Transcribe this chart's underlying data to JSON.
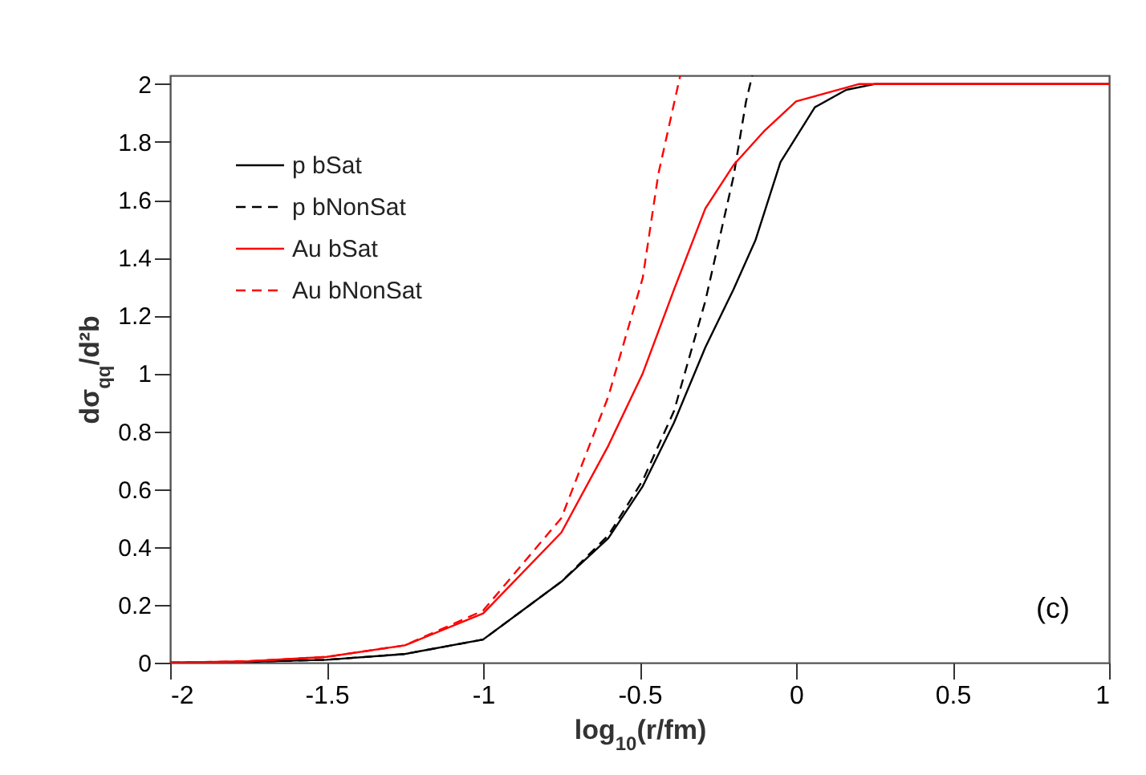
{
  "chart_data": {
    "type": "line",
    "xlabel": "log$_{10}$(r/fm)",
    "ylabel": "dσ$_{qq}$/d²b",
    "xlim": [
      -2,
      1
    ],
    "ylim": [
      0,
      2.03
    ],
    "xticks": [
      -2,
      -1.5,
      -1,
      -0.5,
      0,
      0.5,
      1
    ],
    "yticks": [
      0,
      0.2,
      0.4,
      0.6,
      0.8,
      1,
      1.2,
      1.4,
      1.6,
      1.8,
      2
    ],
    "grid": false,
    "legend": "top left",
    "marker": "none",
    "annotations": [
      "(c)"
    ],
    "series": [
      {
        "name": "p bSat",
        "color": "#000000",
        "line_style": "solid",
        "x": [
          -2,
          -1.75,
          -1.5,
          -1.25,
          -1,
          -0.75,
          -0.6,
          -0.49,
          -0.39,
          -0.29,
          -0.2,
          -0.13,
          -0.05,
          0.06,
          0.16,
          0.25,
          1
        ],
        "values": [
          0,
          0.003,
          0.01,
          0.03,
          0.08,
          0.28,
          0.43,
          0.61,
          0.83,
          1.09,
          1.29,
          1.46,
          1.73,
          1.92,
          1.98,
          2,
          2
        ]
      },
      {
        "name": "p bNonSat",
        "color": "#000000",
        "line_style": "dashed",
        "x": [
          -2,
          -1.75,
          -1.5,
          -1.25,
          -1,
          -0.75,
          -0.6,
          -0.49,
          -0.39,
          -0.29,
          -0.2,
          -0.16,
          -0.14
        ],
        "values": [
          0,
          0.003,
          0.01,
          0.03,
          0.08,
          0.28,
          0.44,
          0.63,
          0.87,
          1.25,
          1.68,
          1.94,
          2.03
        ]
      },
      {
        "name": "Au bSat",
        "color": "#ff0000",
        "line_style": "solid",
        "x": [
          -2,
          -1.75,
          -1.5,
          -1.25,
          -1,
          -0.75,
          -0.6,
          -0.49,
          -0.39,
          -0.29,
          -0.2,
          -0.1,
          0,
          0.1,
          0.2,
          0.4,
          1
        ],
        "values": [
          0,
          0.005,
          0.02,
          0.06,
          0.17,
          0.45,
          0.75,
          1.0,
          1.29,
          1.57,
          1.72,
          1.84,
          1.94,
          1.97,
          2,
          2,
          2
        ]
      },
      {
        "name": "Au bNonSat",
        "color": "#ff0000",
        "line_style": "dashed",
        "x": [
          -2,
          -1.75,
          -1.5,
          -1.25,
          -1,
          -0.75,
          -0.6,
          -0.49,
          -0.44,
          -0.37
        ],
        "values": [
          0,
          0.005,
          0.02,
          0.06,
          0.18,
          0.5,
          0.92,
          1.33,
          1.69,
          2.03
        ]
      }
    ]
  }
}
